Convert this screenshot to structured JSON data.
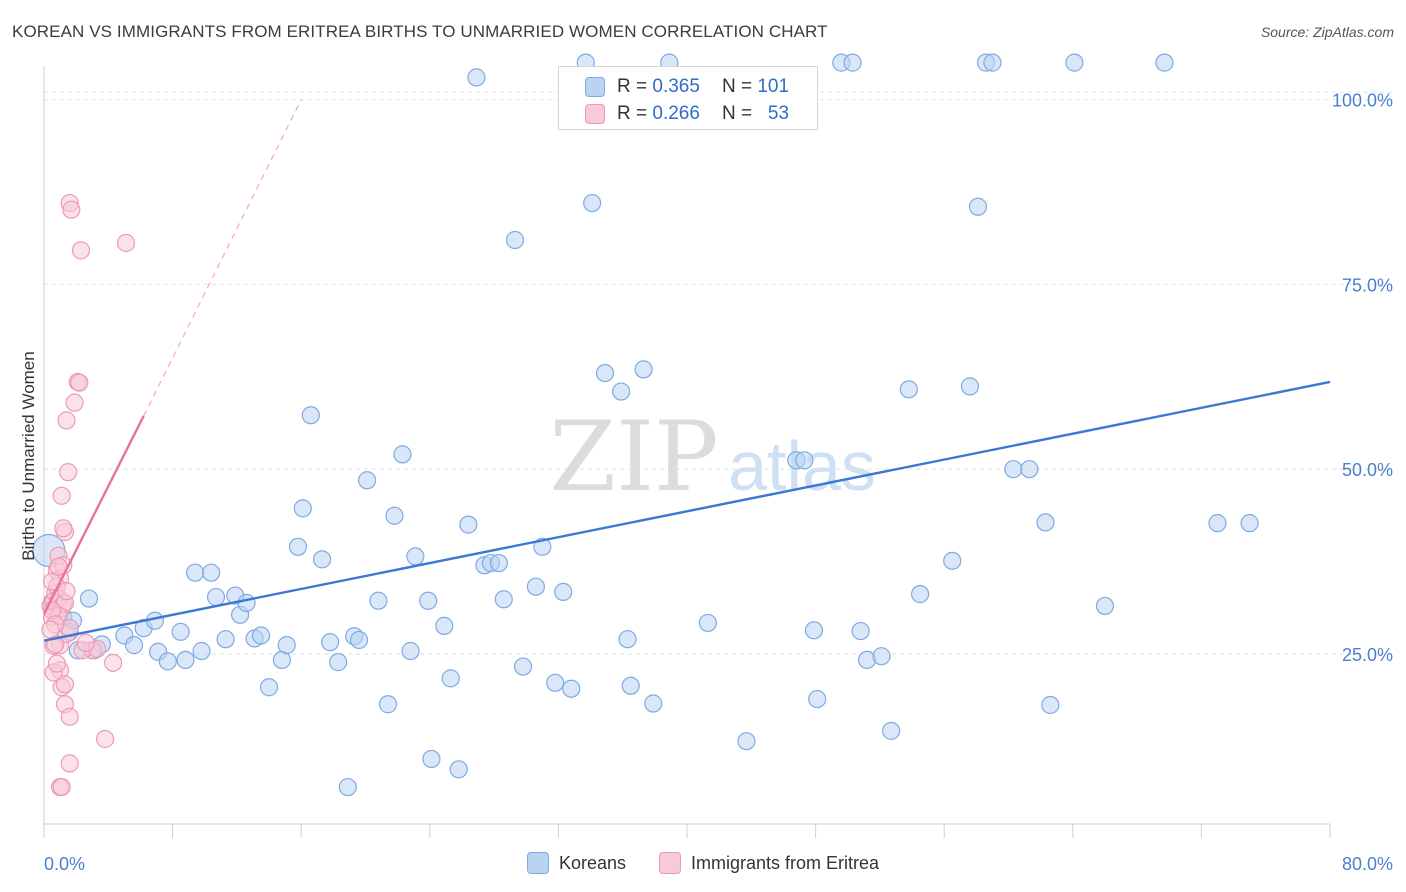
{
  "header": {
    "title": "KOREAN VS IMMIGRANTS FROM ERITREA BIRTHS TO UNMARRIED WOMEN CORRELATION CHART",
    "source": "Source: ZipAtlas.com"
  },
  "watermark": {
    "zip": "ZIP",
    "atlas": "atlas"
  },
  "stats": {
    "r_label": "R =",
    "n_label": "N =",
    "koreans": {
      "r": "0.365",
      "n": "101"
    },
    "eritrea": {
      "r": "0.266",
      "n": "53"
    }
  },
  "legend": {
    "koreans": "Koreans",
    "eritrea": "Immigrants from Eritrea"
  },
  "colors": {
    "blue": "#3a78d4",
    "blue_fill": "#b9d3f3",
    "pink": "#e8729b",
    "pink_fill": "#f8c9d8",
    "tick_label": "#4a7fd0"
  },
  "chart_data": {
    "type": "scatter",
    "title": "KOREAN VS IMMIGRANTS FROM ERITREA BIRTHS TO UNMARRIED WOMEN CORRELATION CHART",
    "xlabel": "",
    "ylabel": "Births to Unmarried Women",
    "xlim": [
      0,
      80
    ],
    "ylim": [
      2,
      104
    ],
    "x_tick_labels": [
      "0.0%",
      "80.0%"
    ],
    "y_ticks": [
      25,
      50,
      75,
      100
    ],
    "y_tick_labels": [
      "25.0%",
      "50.0%",
      "75.0%",
      "100.0%"
    ],
    "series": [
      {
        "name": "Koreans",
        "trend": {
          "x": [
            0,
            80
          ],
          "y": [
            26.8,
            61.8
          ],
          "dashed_extension": false
        },
        "points": [
          [
            0.3,
            39.0
          ],
          [
            0.5,
            32.0
          ],
          [
            1.2,
            30.0
          ],
          [
            1.6,
            28.0
          ],
          [
            2.8,
            32.5
          ],
          [
            1.8,
            29.5
          ],
          [
            2.1,
            25.5
          ],
          [
            3.1,
            25.5
          ],
          [
            3.6,
            26.3
          ],
          [
            5.0,
            27.5
          ],
          [
            6.2,
            28.5
          ],
          [
            5.6,
            26.2
          ],
          [
            7.1,
            25.3
          ],
          [
            6.9,
            29.5
          ],
          [
            7.7,
            24.0
          ],
          [
            8.5,
            28.0
          ],
          [
            8.8,
            24.2
          ],
          [
            9.4,
            36.0
          ],
          [
            9.8,
            25.4
          ],
          [
            10.4,
            36.0
          ],
          [
            10.7,
            32.7
          ],
          [
            11.3,
            27.0
          ],
          [
            11.9,
            32.9
          ],
          [
            12.2,
            30.3
          ],
          [
            12.6,
            31.9
          ],
          [
            13.1,
            27.1
          ],
          [
            13.5,
            27.5
          ],
          [
            14.0,
            20.5
          ],
          [
            14.8,
            24.2
          ],
          [
            15.1,
            26.2
          ],
          [
            15.8,
            39.5
          ],
          [
            16.1,
            44.7
          ],
          [
            16.6,
            57.3
          ],
          [
            17.3,
            37.8
          ],
          [
            17.8,
            26.6
          ],
          [
            18.3,
            23.9
          ],
          [
            18.9,
            7.0
          ],
          [
            19.3,
            27.4
          ],
          [
            19.6,
            26.9
          ],
          [
            20.1,
            48.5
          ],
          [
            20.8,
            32.2
          ],
          [
            21.4,
            18.2
          ],
          [
            21.8,
            43.7
          ],
          [
            22.3,
            52.0
          ],
          [
            22.8,
            25.4
          ],
          [
            23.1,
            38.2
          ],
          [
            23.9,
            32.2
          ],
          [
            24.1,
            10.8
          ],
          [
            24.9,
            28.8
          ],
          [
            25.3,
            21.7
          ],
          [
            25.8,
            9.4
          ],
          [
            26.4,
            42.5
          ],
          [
            26.9,
            103.0
          ],
          [
            27.4,
            37.0
          ],
          [
            27.8,
            37.3
          ],
          [
            28.3,
            37.3
          ],
          [
            28.6,
            32.4
          ],
          [
            29.3,
            81.0
          ],
          [
            29.8,
            23.3
          ],
          [
            30.6,
            34.1
          ],
          [
            31.0,
            39.5
          ],
          [
            31.8,
            21.1
          ],
          [
            32.3,
            33.4
          ],
          [
            32.8,
            20.3
          ],
          [
            33.7,
            105.0
          ],
          [
            34.1,
            86.0
          ],
          [
            34.9,
            63.0
          ],
          [
            35.9,
            60.5
          ],
          [
            36.3,
            27.0
          ],
          [
            36.5,
            20.7
          ],
          [
            37.3,
            63.5
          ],
          [
            37.9,
            18.3
          ],
          [
            38.9,
            105.0
          ],
          [
            41.3,
            29.2
          ],
          [
            43.7,
            13.2
          ],
          [
            46.8,
            51.2
          ],
          [
            47.3,
            51.2
          ],
          [
            47.9,
            28.2
          ],
          [
            48.1,
            18.9
          ],
          [
            49.6,
            105.0
          ],
          [
            50.3,
            105.0
          ],
          [
            50.8,
            28.1
          ],
          [
            51.2,
            24.2
          ],
          [
            52.1,
            24.7
          ],
          [
            52.7,
            14.6
          ],
          [
            53.8,
            60.8
          ],
          [
            54.5,
            33.1
          ],
          [
            56.5,
            37.6
          ],
          [
            57.6,
            61.2
          ],
          [
            58.1,
            85.5
          ],
          [
            58.6,
            105.0
          ],
          [
            59.0,
            105.0
          ],
          [
            60.3,
            50.0
          ],
          [
            61.3,
            50.0
          ],
          [
            62.3,
            42.8
          ],
          [
            62.6,
            18.1
          ],
          [
            66.0,
            31.5
          ],
          [
            73.0,
            42.7
          ],
          [
            75.0,
            42.7
          ],
          [
            69.7,
            105.0
          ],
          [
            64.1,
            105.0
          ]
        ]
      },
      {
        "name": "Immigrants from Eritrea",
        "trend": {
          "x": [
            0,
            6.2
          ],
          "y": [
            30.4,
            57.2
          ],
          "dashed_extension": true,
          "dashed_to": [
            16.0,
            100.0
          ]
        },
        "points": [
          [
            0.4,
            31.5
          ],
          [
            0.5,
            30.0
          ],
          [
            0.6,
            32.2
          ],
          [
            0.7,
            33.2
          ],
          [
            0.8,
            36.3
          ],
          [
            0.9,
            38.3
          ],
          [
            1.0,
            35.2
          ],
          [
            1.1,
            31.2
          ],
          [
            0.8,
            34.1
          ],
          [
            0.9,
            32.5
          ],
          [
            1.2,
            31.7
          ],
          [
            1.3,
            31.9
          ],
          [
            0.9,
            30.2
          ],
          [
            1.0,
            26.2
          ],
          [
            0.6,
            26.1
          ],
          [
            1.0,
            22.8
          ],
          [
            0.6,
            22.5
          ],
          [
            1.1,
            20.5
          ],
          [
            1.3,
            20.9
          ],
          [
            1.3,
            18.2
          ],
          [
            1.6,
            16.5
          ],
          [
            1.6,
            10.2
          ],
          [
            1.0,
            7.0
          ],
          [
            1.1,
            7.0
          ],
          [
            1.4,
            27.7
          ],
          [
            1.6,
            28.5
          ],
          [
            1.3,
            41.5
          ],
          [
            1.1,
            46.4
          ],
          [
            1.5,
            49.6
          ],
          [
            1.4,
            56.6
          ],
          [
            1.9,
            59.0
          ],
          [
            2.1,
            61.8
          ],
          [
            2.2,
            61.7
          ],
          [
            1.6,
            86.0
          ],
          [
            1.7,
            85.1
          ],
          [
            2.3,
            79.6
          ],
          [
            5.1,
            80.6
          ],
          [
            3.0,
            25.5
          ],
          [
            2.4,
            25.5
          ],
          [
            3.3,
            25.7
          ],
          [
            4.3,
            23.8
          ],
          [
            3.8,
            13.5
          ],
          [
            0.5,
            30.9
          ],
          [
            0.7,
            29.0
          ],
          [
            1.2,
            37.0
          ],
          [
            0.5,
            34.8
          ],
          [
            0.7,
            26.3
          ],
          [
            0.8,
            23.7
          ],
          [
            0.9,
            36.8
          ],
          [
            1.2,
            42.0
          ],
          [
            2.6,
            26.5
          ],
          [
            0.4,
            28.3
          ],
          [
            1.4,
            33.5
          ]
        ]
      }
    ]
  }
}
